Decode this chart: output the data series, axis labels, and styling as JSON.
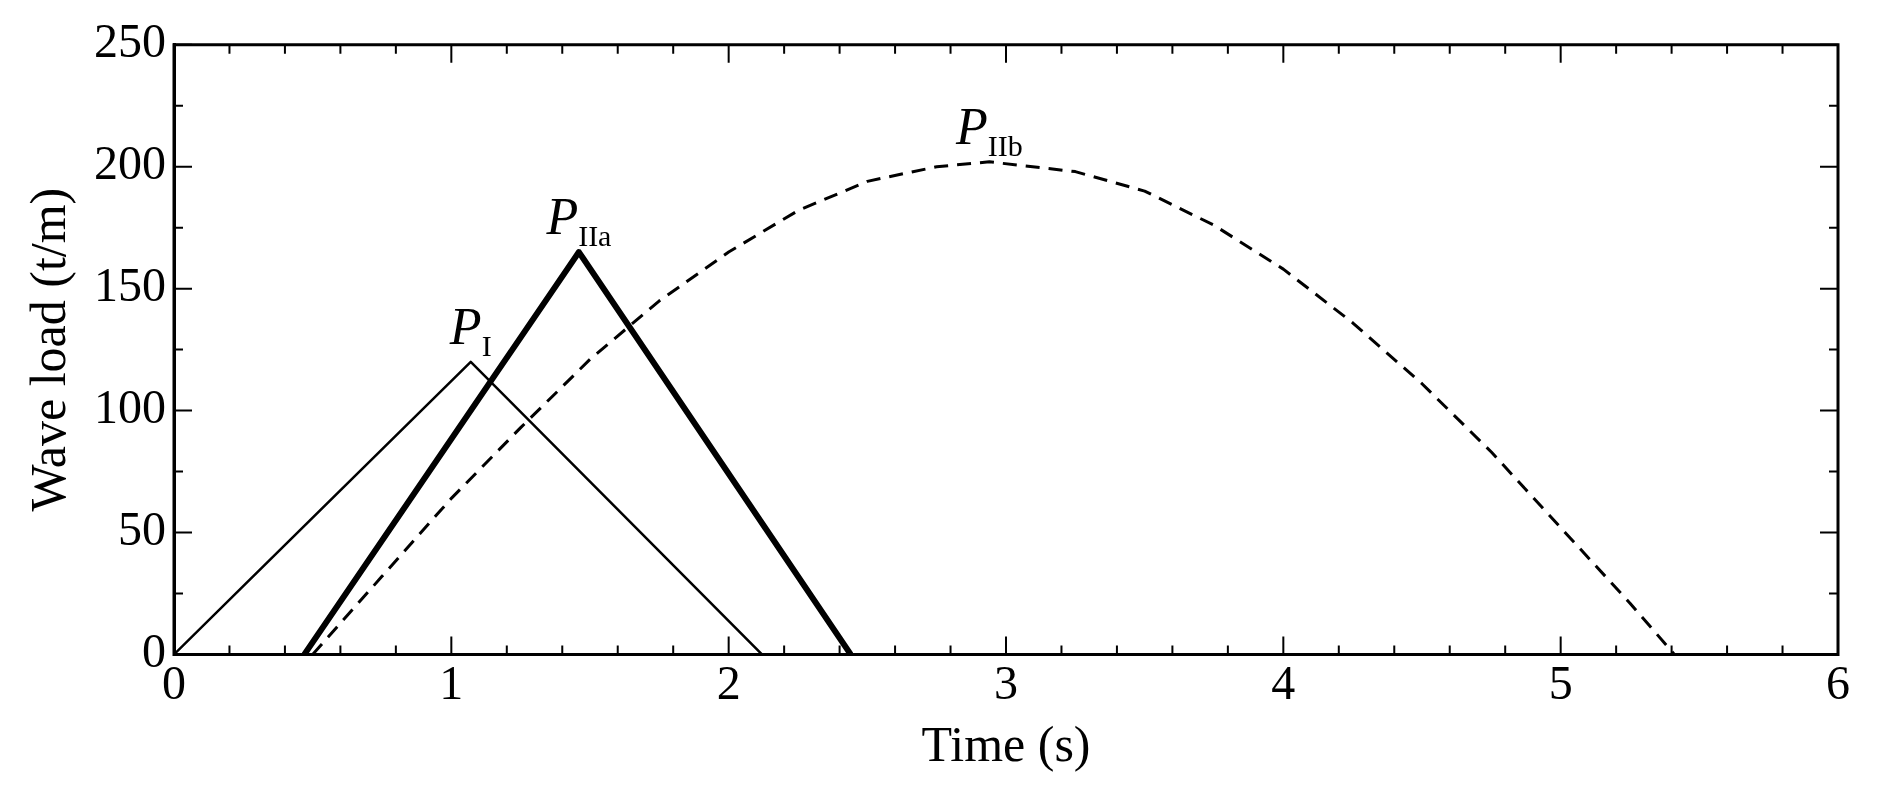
{
  "chart_data": {
    "type": "line",
    "xlabel": "Time (s)",
    "ylabel": "Wave load (t/m)",
    "xlim": [
      0,
      6
    ],
    "ylim": [
      0,
      250
    ],
    "xticks": [
      0,
      {
        "value": 0.2,
        "label": null
      },
      {
        "value": 0.4,
        "label": null
      },
      {
        "value": 0.6,
        "label": null
      },
      {
        "value": 0.8,
        "label": null
      },
      1,
      {
        "value": 1.2,
        "label": null
      },
      {
        "value": 1.4,
        "label": null
      },
      {
        "value": 1.6,
        "label": null
      },
      {
        "value": 1.8,
        "label": null
      },
      2,
      {
        "value": 2.2,
        "label": null
      },
      {
        "value": 2.4,
        "label": null
      },
      {
        "value": 2.6,
        "label": null
      },
      {
        "value": 2.8,
        "label": null
      },
      3,
      {
        "value": 3.2,
        "label": null
      },
      {
        "value": 3.4,
        "label": null
      },
      {
        "value": 3.6,
        "label": null
      },
      {
        "value": 3.8,
        "label": null
      },
      4,
      {
        "value": 4.2,
        "label": null
      },
      {
        "value": 4.4,
        "label": null
      },
      {
        "value": 4.6,
        "label": null
      },
      {
        "value": 4.8,
        "label": null
      },
      5,
      {
        "value": 5.2,
        "label": null
      },
      {
        "value": 5.4,
        "label": null
      },
      {
        "value": 5.6,
        "label": null
      },
      {
        "value": 5.8,
        "label": null
      },
      6
    ],
    "yticks": [
      0,
      {
        "value": 25,
        "label": null
      },
      50,
      {
        "value": 75,
        "label": null
      },
      100,
      {
        "value": 125,
        "label": null
      },
      150,
      {
        "value": 175,
        "label": null
      },
      200,
      {
        "value": 225,
        "label": null
      },
      250
    ],
    "grid": false,
    "legend": false,
    "marker": "none",
    "series": [
      {
        "color": "#000000",
        "line_style": "solid",
        "x": [
          0,
          1.07,
          2.12
        ],
        "values": [
          0,
          120,
          0
        ]
      },
      {
        "color": "#000000",
        "line_style": "solid",
        "x": [
          0.47,
          1.46,
          2.44
        ],
        "values": [
          0,
          165,
          0
        ]
      },
      {
        "color": "#000000",
        "line_style": "dashed",
        "x": [
          0.5,
          0.75,
          1,
          1.25,
          1.5,
          1.75,
          2,
          2.25,
          2.5,
          2.75,
          2.94,
          3.25,
          3.5,
          3.75,
          4,
          4.25,
          4.5,
          4.75,
          5,
          5.25,
          5.41
        ],
        "values": [
          0,
          32,
          64,
          93,
          121,
          145,
          165,
          182,
          194,
          200,
          202,
          198,
          190,
          176,
          158,
          136,
          111,
          83,
          52,
          21,
          0
        ]
      }
    ],
    "annotations": [
      {
        "text": "P$_{I}$",
        "x": 1.07,
        "y": 120
      },
      {
        "text": "P$_{IIa}$",
        "x": 1.46,
        "y": 165
      },
      {
        "text": "P$_{IIb}$",
        "x": 2.94,
        "y": 202
      }
    ]
  }
}
